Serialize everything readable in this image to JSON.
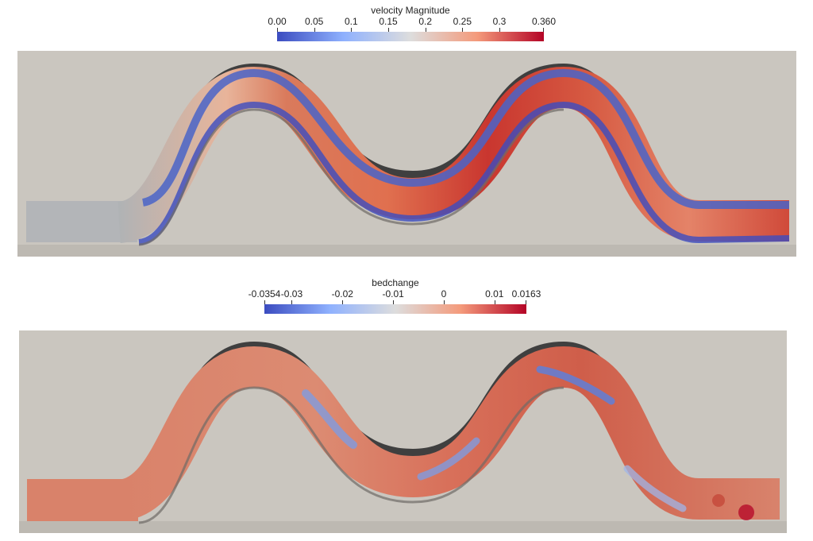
{
  "colorbar_velocity": {
    "title": "velocity Magnitude",
    "ticks": [
      "0.00",
      "0.05",
      "0.1",
      "0.15",
      "0.2",
      "0.25",
      "0.3",
      "0.360"
    ],
    "tick_values": [
      0.0,
      0.05,
      0.1,
      0.15,
      0.2,
      0.25,
      0.3,
      0.36
    ],
    "range": [
      0.0,
      0.36
    ],
    "colors": [
      "#3b4cc0",
      "#8fb1fe",
      "#dddddd",
      "#f49a7b",
      "#b40426"
    ]
  },
  "colorbar_bedchange": {
    "title": "bedchange",
    "ticks": [
      "-0.0354",
      "-0.03",
      "-0.02",
      "-0.01",
      "0",
      "0.01",
      "0.0163"
    ],
    "tick_values": [
      -0.0354,
      -0.03,
      -0.02,
      -0.01,
      0.0,
      0.01,
      0.0163
    ],
    "range": [
      -0.0354,
      0.0163
    ],
    "colors": [
      "#3b4cc0",
      "#8fb1fe",
      "#dddddd",
      "#f49a7b",
      "#b40426"
    ]
  },
  "scene": {
    "background_color": "#cac6bf",
    "wall_dark": "#3f3f3f",
    "wall_light": "#8e8a84"
  }
}
